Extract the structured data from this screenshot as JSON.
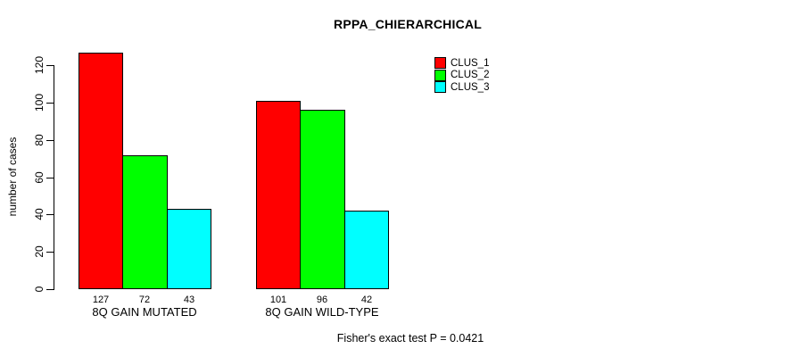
{
  "chart_data": {
    "type": "bar",
    "title": "RPPA_CHIERARCHICAL",
    "ylabel": "number of cases",
    "xlabel": "",
    "categories": [
      "8Q GAIN MUTATED",
      "8Q GAIN WILD-TYPE"
    ],
    "series": [
      {
        "name": "CLUS_1",
        "color": "#ff0000",
        "values": [
          127,
          101
        ]
      },
      {
        "name": "CLUS_2",
        "color": "#00ff00",
        "values": [
          72,
          96
        ]
      },
      {
        "name": "CLUS_3",
        "color": "#00ffff",
        "values": [
          43,
          42
        ]
      }
    ],
    "yticks": [
      0,
      20,
      40,
      60,
      80,
      100,
      120
    ],
    "ylim": [
      0,
      130
    ],
    "grid": false,
    "bar_value_labels_shown": true,
    "legend_position": "top-right",
    "annotation": "Fisher's exact test P = 0.0421"
  }
}
